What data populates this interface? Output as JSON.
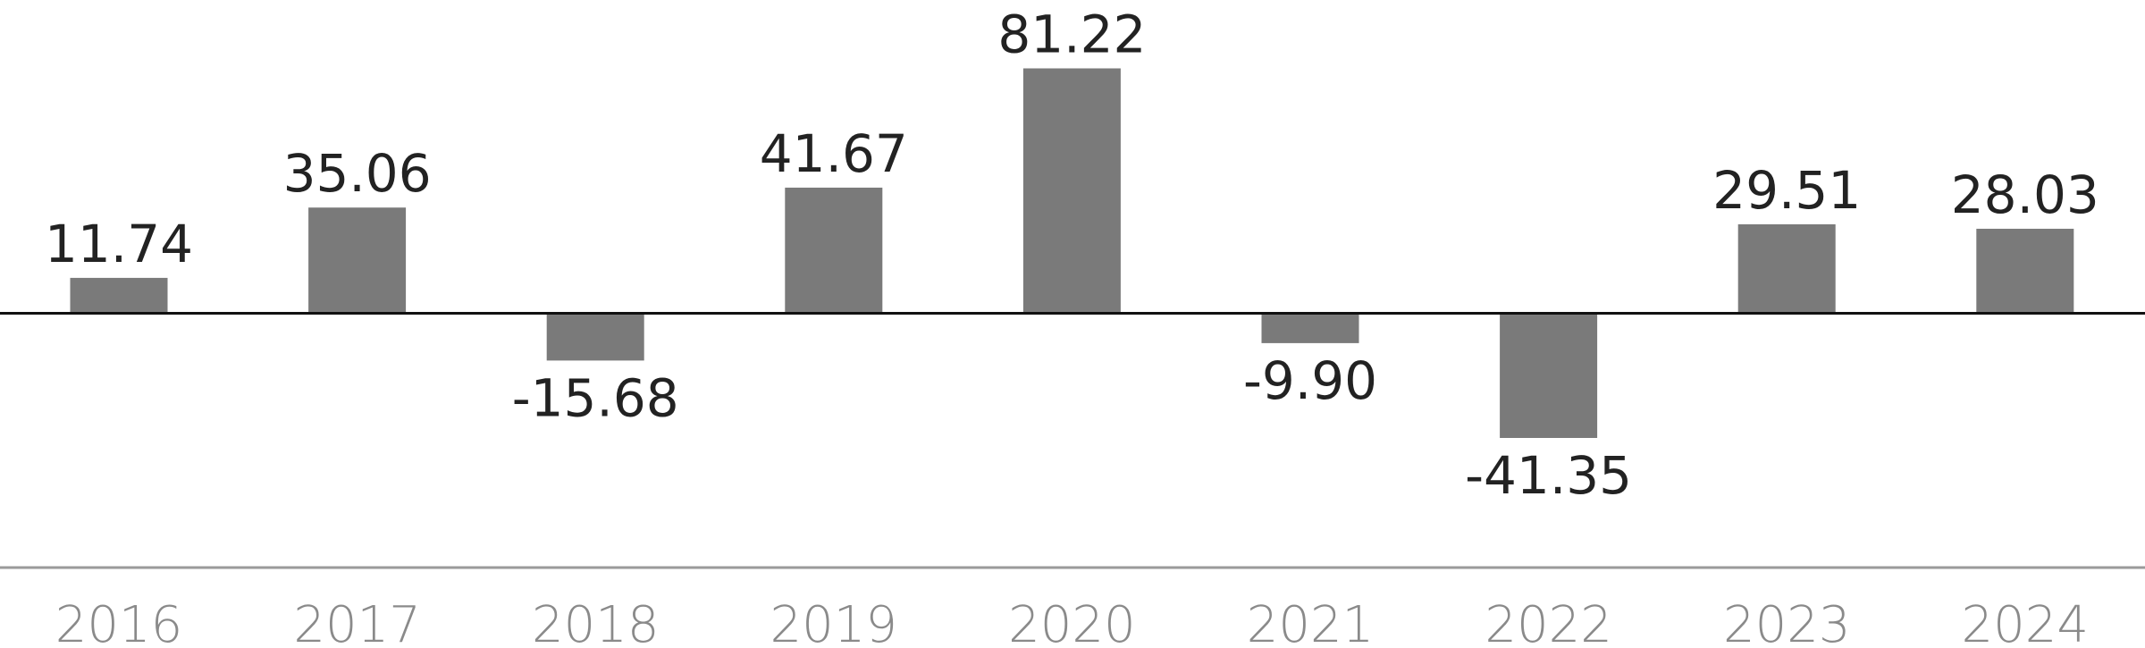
{
  "chart_data": {
    "type": "bar",
    "categories": [
      "2016",
      "2017",
      "2018",
      "2019",
      "2020",
      "2021",
      "2022",
      "2023",
      "2024"
    ],
    "values": [
      11.74,
      35.06,
      -15.68,
      41.67,
      81.22,
      -9.9,
      -41.35,
      29.51,
      28.03
    ],
    "value_labels": [
      "11.74",
      "35.06",
      "-15.68",
      "41.67",
      "81.22",
      "-9.90",
      "-41.35",
      "29.51",
      "28.03"
    ],
    "color": "#7a7a7a"
  }
}
